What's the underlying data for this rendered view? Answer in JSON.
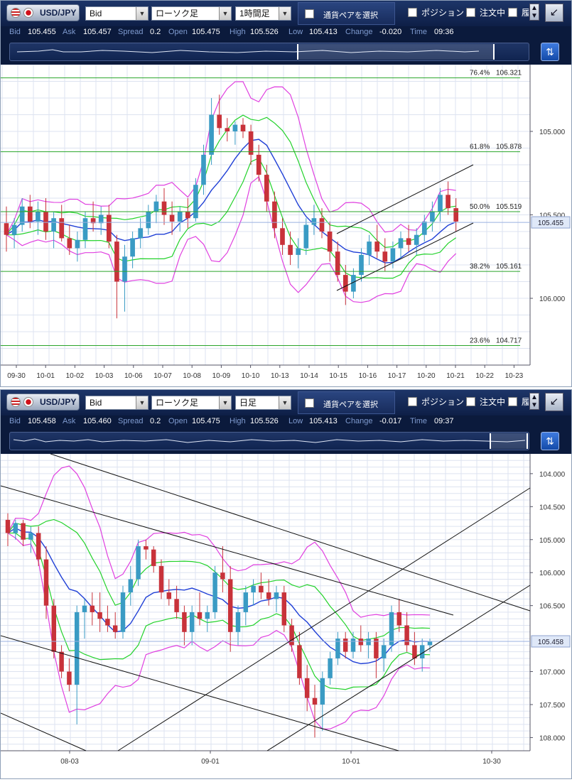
{
  "panels": [
    {
      "symbol": "USD/JPY",
      "price_type": "Bid",
      "chart_type": "ローソク足",
      "timeframe": "1時間足",
      "pair_select": "通貨ペアを選択",
      "position": "ポジション",
      "orders": "注文中",
      "history": "履",
      "quote": {
        "bid_label": "Bid",
        "bid": "105.455",
        "ask_label": "Ask",
        "ask": "105.457",
        "spread_label": "Spread",
        "spread": "0.2",
        "open_label": "Open",
        "open": "105.475",
        "high_label": "High",
        "high": "105.526",
        "low_label": "Low",
        "low": "105.413",
        "change_label": "Change",
        "change": "-0.020",
        "time_label": "Time",
        "time": "09:36"
      },
      "y_ticks": [
        "106.000",
        "105.500",
        "105.000"
      ],
      "current_price_tag": "105.455",
      "x_ticks": [
        "09-30",
        "10-01",
        "10-02",
        "10-03",
        "10-06",
        "10-07",
        "10-08",
        "10-09",
        "10-10",
        "10-13",
        "10-14",
        "10-15",
        "10-16",
        "10-17",
        "10-20",
        "10-21",
        "10-22",
        "10-23"
      ],
      "fib_levels": [
        {
          "pct": "76.4%",
          "price": "106.321"
        },
        {
          "pct": "61.8%",
          "price": "105.878"
        },
        {
          "pct": "50.0%",
          "price": "105.519"
        },
        {
          "pct": "38.2%",
          "price": "105.161"
        },
        {
          "pct": "23.6%",
          "price": "104.717"
        }
      ]
    },
    {
      "symbol": "USD/JPY",
      "price_type": "Bid",
      "chart_type": "ローソク足",
      "timeframe": "日足",
      "pair_select": "通貨ペアを選択",
      "position": "ポジション",
      "orders": "注文中",
      "history": "履",
      "quote": {
        "bid_label": "Bid",
        "bid": "105.458",
        "ask_label": "Ask",
        "ask": "105.460",
        "spread_label": "Spread",
        "spread": "0.2",
        "open_label": "Open",
        "open": "105.475",
        "high_label": "High",
        "high": "105.526",
        "low_label": "Low",
        "low": "105.413",
        "change_label": "Change",
        "change": "-0.017",
        "time_label": "Time",
        "time": "09:37"
      },
      "y_ticks": [
        "108.000",
        "107.500",
        "107.000",
        "106.500",
        "106.000",
        "105.000",
        "104.500",
        "104.000"
      ],
      "current_price_tag": "105.458",
      "x_ticks": [
        "08-03",
        "09-01",
        "10-01",
        "10-30"
      ]
    }
  ],
  "chart_data": [
    {
      "type": "candlestick",
      "title": "USD/JPY 1時間足",
      "ylim": [
        104.6,
        106.4
      ],
      "y_ticks": [
        105.0,
        105.5,
        106.0
      ],
      "last_price": 105.455,
      "fib_levels": [
        106.321,
        105.878,
        105.519,
        105.161,
        104.717
      ],
      "candles_hourly": [
        [
          105.45,
          105.55,
          105.28,
          105.38
        ],
        [
          105.38,
          105.48,
          105.3,
          105.44
        ],
        [
          105.44,
          105.6,
          105.4,
          105.55
        ],
        [
          105.55,
          105.62,
          105.42,
          105.46
        ],
        [
          105.46,
          105.58,
          105.38,
          105.52
        ],
        [
          105.52,
          105.6,
          105.35,
          105.4
        ],
        [
          105.4,
          105.52,
          105.3,
          105.48
        ],
        [
          105.48,
          105.56,
          105.34,
          105.36
        ],
        [
          105.36,
          105.44,
          105.26,
          105.3
        ],
        [
          105.3,
          105.4,
          105.22,
          105.35
        ],
        [
          105.35,
          105.52,
          105.3,
          105.48
        ],
        [
          105.48,
          105.58,
          105.4,
          105.45
        ],
        [
          105.45,
          105.55,
          105.38,
          105.5
        ],
        [
          105.5,
          105.56,
          105.3,
          105.34
        ],
        [
          105.34,
          105.38,
          104.88,
          105.1
        ],
        [
          105.1,
          105.32,
          104.92,
          105.25
        ],
        [
          105.25,
          105.4,
          105.18,
          105.36
        ],
        [
          105.36,
          105.48,
          105.3,
          105.42
        ],
        [
          105.42,
          105.56,
          105.38,
          105.52
        ],
        [
          105.52,
          105.62,
          105.45,
          105.58
        ],
        [
          105.58,
          105.66,
          105.44,
          105.5
        ],
        [
          105.5,
          105.58,
          105.38,
          105.46
        ],
        [
          105.46,
          105.55,
          105.4,
          105.52
        ],
        [
          105.52,
          105.6,
          105.42,
          105.48
        ],
        [
          105.48,
          105.72,
          105.46,
          105.68
        ],
        [
          105.68,
          105.92,
          105.62,
          105.86
        ],
        [
          105.86,
          106.2,
          105.8,
          106.1
        ],
        [
          106.1,
          106.22,
          105.98,
          106.02
        ],
        [
          106.02,
          106.08,
          105.94,
          106.0
        ],
        [
          106.0,
          106.06,
          105.92,
          106.04
        ],
        [
          106.04,
          106.08,
          105.96,
          106.0
        ],
        [
          106.0,
          106.04,
          105.8,
          105.86
        ],
        [
          105.86,
          105.92,
          105.7,
          105.74
        ],
        [
          105.74,
          105.8,
          105.52,
          105.58
        ],
        [
          105.58,
          105.64,
          105.36,
          105.42
        ],
        [
          105.42,
          105.48,
          105.26,
          105.32
        ],
        [
          105.32,
          105.4,
          105.2,
          105.26
        ],
        [
          105.26,
          105.36,
          105.18,
          105.3
        ],
        [
          105.3,
          105.48,
          105.26,
          105.44
        ],
        [
          105.44,
          105.56,
          105.38,
          105.48
        ],
        [
          105.48,
          105.54,
          105.36,
          105.4
        ],
        [
          105.4,
          105.46,
          105.22,
          105.28
        ],
        [
          105.28,
          105.34,
          105.1,
          105.14
        ],
        [
          105.14,
          105.2,
          104.96,
          105.04
        ],
        [
          105.04,
          105.18,
          105.0,
          105.14
        ],
        [
          105.14,
          105.3,
          105.1,
          105.26
        ],
        [
          105.26,
          105.38,
          105.2,
          105.34
        ],
        [
          105.34,
          105.44,
          105.24,
          105.28
        ],
        [
          105.28,
          105.36,
          105.16,
          105.22
        ],
        [
          105.22,
          105.34,
          105.18,
          105.3
        ],
        [
          105.3,
          105.4,
          105.24,
          105.36
        ],
        [
          105.36,
          105.44,
          105.28,
          105.32
        ],
        [
          105.32,
          105.42,
          105.26,
          105.38
        ],
        [
          105.38,
          105.5,
          105.34,
          105.46
        ],
        [
          105.46,
          105.58,
          105.4,
          105.52
        ],
        [
          105.52,
          105.66,
          105.46,
          105.62
        ],
        [
          105.62,
          105.7,
          105.5,
          105.54
        ],
        [
          105.54,
          105.6,
          105.4,
          105.46
        ]
      ]
    },
    {
      "type": "candlestick",
      "title": "USD/JPY 日足",
      "ylim": [
        103.8,
        108.3
      ],
      "y_ticks": [
        104.0,
        104.5,
        105.0,
        106.0,
        106.5,
        107.0,
        107.5,
        108.0
      ],
      "last_price": 105.458,
      "candles_daily": [
        [
          107.3,
          107.4,
          106.9,
          107.1
        ],
        [
          107.1,
          107.3,
          107.0,
          107.25
        ],
        [
          107.25,
          107.3,
          106.9,
          107.0
        ],
        [
          107.0,
          107.2,
          106.8,
          107.1
        ],
        [
          107.1,
          107.2,
          106.6,
          106.7
        ],
        [
          106.7,
          106.9,
          105.8,
          106.0
        ],
        [
          106.0,
          106.1,
          105.2,
          105.3
        ],
        [
          105.3,
          105.4,
          104.9,
          105.0
        ],
        [
          105.0,
          105.2,
          104.7,
          104.8
        ],
        [
          104.8,
          106.0,
          104.2,
          105.9
        ],
        [
          105.9,
          106.1,
          105.5,
          106.0
        ],
        [
          106.0,
          106.2,
          105.7,
          105.9
        ],
        [
          105.9,
          106.2,
          105.6,
          105.8
        ],
        [
          105.8,
          106.0,
          105.6,
          105.7
        ],
        [
          105.7,
          105.9,
          105.5,
          105.6
        ],
        [
          105.6,
          106.3,
          105.5,
          106.2
        ],
        [
          106.2,
          106.6,
          106.0,
          106.4
        ],
        [
          106.4,
          107.0,
          106.3,
          106.9
        ],
        [
          106.9,
          107.0,
          106.7,
          106.85
        ],
        [
          106.85,
          106.9,
          106.5,
          106.6
        ],
        [
          106.6,
          106.7,
          106.1,
          106.2
        ],
        [
          106.2,
          106.4,
          106.0,
          106.1
        ],
        [
          106.1,
          106.3,
          105.8,
          105.9
        ],
        [
          105.9,
          106.0,
          105.4,
          105.6
        ],
        [
          105.6,
          106.0,
          105.4,
          105.9
        ],
        [
          105.9,
          106.2,
          105.7,
          105.8
        ],
        [
          105.8,
          106.0,
          105.6,
          105.9
        ],
        [
          105.9,
          106.6,
          105.8,
          106.5
        ],
        [
          106.5,
          106.9,
          106.2,
          106.4
        ],
        [
          106.4,
          106.6,
          105.3,
          105.6
        ],
        [
          105.6,
          106.0,
          105.4,
          105.9
        ],
        [
          105.9,
          106.3,
          105.7,
          106.2
        ],
        [
          106.2,
          106.4,
          106.0,
          106.3
        ],
        [
          106.3,
          106.5,
          106.1,
          106.2
        ],
        [
          106.2,
          106.4,
          106.0,
          106.1
        ],
        [
          106.1,
          106.3,
          105.9,
          106.2
        ],
        [
          106.2,
          106.3,
          105.6,
          105.7
        ],
        [
          105.7,
          105.8,
          105.3,
          105.4
        ],
        [
          105.4,
          105.6,
          104.8,
          104.9
        ],
        [
          104.9,
          105.1,
          104.4,
          104.6
        ],
        [
          104.6,
          104.8,
          104.0,
          104.5
        ],
        [
          104.5,
          105.0,
          104.1,
          104.9
        ],
        [
          104.9,
          105.3,
          104.8,
          105.2
        ],
        [
          105.2,
          105.6,
          105.1,
          105.5
        ],
        [
          105.5,
          105.6,
          105.2,
          105.3
        ],
        [
          105.3,
          105.6,
          105.2,
          105.5
        ],
        [
          105.5,
          105.7,
          105.3,
          105.4
        ],
        [
          105.4,
          105.6,
          105.2,
          105.5
        ],
        [
          105.5,
          105.6,
          104.9,
          105.2
        ],
        [
          105.2,
          105.5,
          105.0,
          105.4
        ],
        [
          105.4,
          106.0,
          105.3,
          105.9
        ],
        [
          105.9,
          106.1,
          105.6,
          105.7
        ],
        [
          105.7,
          105.9,
          105.3,
          105.4
        ],
        [
          105.4,
          105.6,
          105.1,
          105.2
        ],
        [
          105.2,
          105.5,
          105.0,
          105.4
        ],
        [
          105.4,
          105.5,
          105.3,
          105.46
        ]
      ]
    }
  ],
  "colors": {
    "toolbar_bg": "#12275a",
    "quote_bg": "#0b1a3c",
    "candle_up": "#3a9bc4",
    "candle_down": "#c8323a",
    "ma_blue": "#1f3fd6",
    "band_green": "#22d22a",
    "band_magenta": "#e040e0",
    "fib_line": "#2aa52a",
    "grid": "#dde3f0"
  }
}
